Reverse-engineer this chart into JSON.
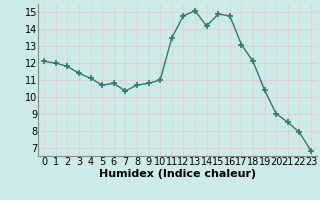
{
  "x": [
    0,
    1,
    2,
    3,
    4,
    5,
    6,
    7,
    8,
    9,
    10,
    11,
    12,
    13,
    14,
    15,
    16,
    17,
    18,
    19,
    20,
    21,
    22,
    23
  ],
  "y": [
    12.1,
    12.0,
    11.8,
    11.4,
    11.1,
    10.7,
    10.8,
    10.35,
    10.7,
    10.8,
    11.0,
    13.5,
    14.8,
    15.1,
    14.2,
    14.9,
    14.8,
    13.1,
    12.1,
    10.4,
    9.0,
    8.5,
    7.9,
    6.8
  ],
  "xlabel": "Humidex (Indice chaleur)",
  "xlim": [
    -0.5,
    23.5
  ],
  "ylim": [
    6.5,
    15.5
  ],
  "yticks": [
    7,
    8,
    9,
    10,
    11,
    12,
    13,
    14,
    15
  ],
  "xticks": [
    0,
    1,
    2,
    3,
    4,
    5,
    6,
    7,
    8,
    9,
    10,
    11,
    12,
    13,
    14,
    15,
    16,
    17,
    18,
    19,
    20,
    21,
    22,
    23
  ],
  "line_color": "#2d7a6e",
  "marker_color": "#2d7a6e",
  "bg_color": "#cceae8",
  "grid_color": "#e8c8c8",
  "axis_label_fontsize": 8,
  "tick_fontsize": 7
}
